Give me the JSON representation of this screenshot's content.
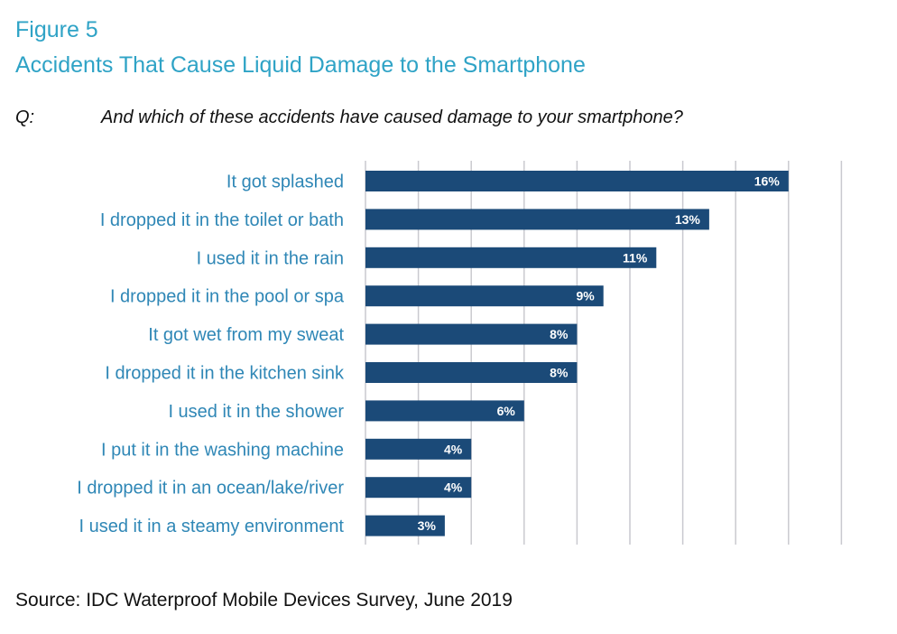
{
  "figure": {
    "label": "Figure 5",
    "title": "Accidents That Cause Liquid Damage to the Smartphone"
  },
  "question": {
    "prefix": "Q:",
    "text": "And which of these accidents have caused damage to your smartphone?"
  },
  "source": "Source: IDC Waterproof Mobile Devices Survey, June 2019",
  "colors": {
    "title": "#2fa3c6",
    "category_label": "#2f87b6",
    "bar": "#1b4a78",
    "gridline": "#c9c9cf"
  },
  "chart_data": {
    "type": "bar",
    "orientation": "horizontal",
    "categories": [
      "It got splashed",
      "I dropped it in the toilet or bath",
      "I used it in the rain",
      "I dropped it in the pool or spa",
      "It got wet from my sweat",
      "I dropped it in the kitchen sink",
      "I used it in the shower",
      "I put it in the washing machine",
      "I dropped it in an ocean/lake/river",
      "I used it in a steamy environment"
    ],
    "values": [
      16,
      13,
      11,
      9,
      8,
      8,
      6,
      4,
      4,
      3
    ],
    "value_labels": [
      "16%",
      "13%",
      "11%",
      "9%",
      "8%",
      "8%",
      "6%",
      "4%",
      "4%",
      "3%"
    ],
    "unit": "%",
    "xlim": [
      0,
      18
    ],
    "grid": true,
    "legend": "none"
  }
}
